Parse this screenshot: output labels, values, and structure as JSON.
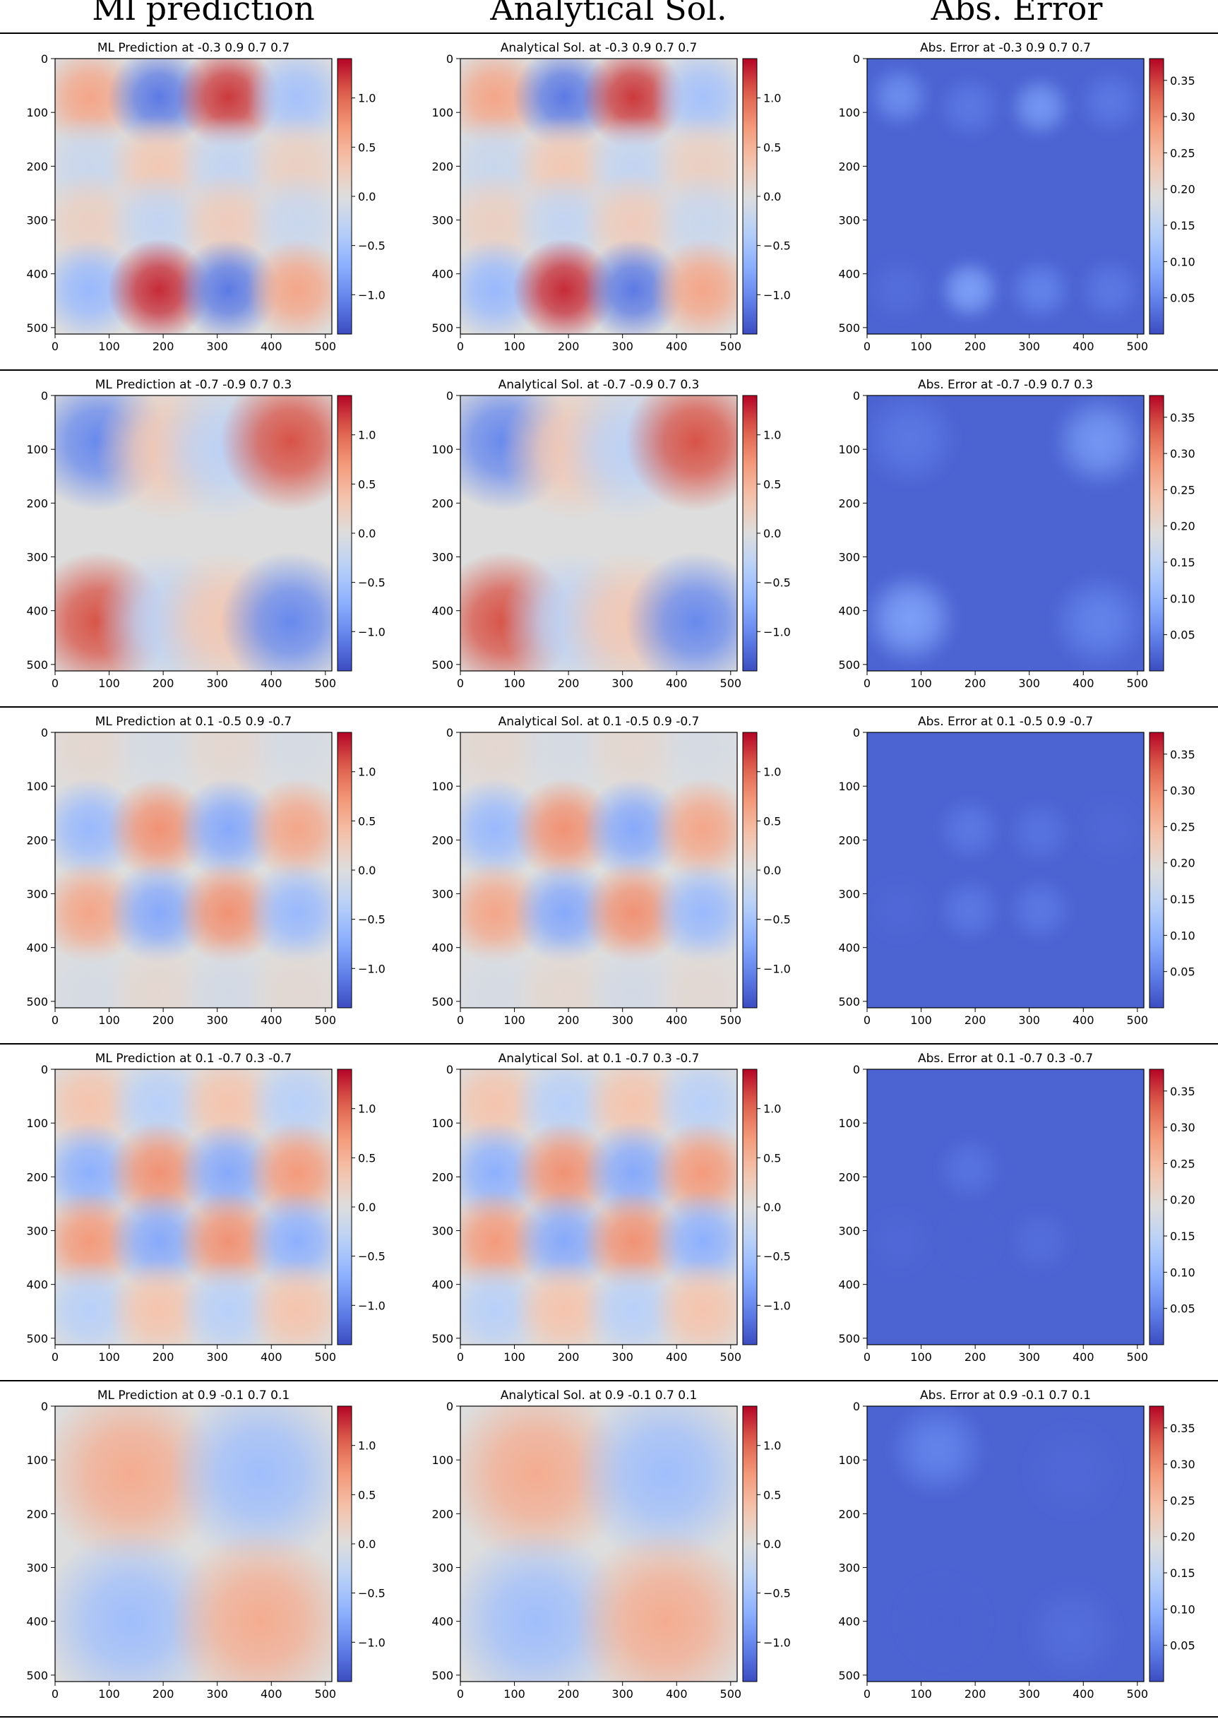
{
  "column_titles": [
    "Ml prediction",
    "Analytical Sol.",
    "Abs. Error"
  ],
  "colors": {
    "cmap_low": "#3b4cc0",
    "cmap_mid": "#dddddd",
    "cmap_high": "#b40426",
    "separator": "#000000"
  },
  "chart_data": [
    {
      "type": "heatmap",
      "row": 1,
      "params": "-0.3 0.9 0.7 0.7",
      "panels": [
        {
          "title": "ML Prediction at -0.3 0.9 0.7 0.7",
          "kind": "field",
          "colorbar_ticks": [
            "1.0",
            "0.5",
            "0.0",
            "−0.5",
            "−1.0"
          ],
          "vmin": -1.4,
          "vmax": 1.4
        },
        {
          "title": "Analytical Sol. at -0.3 0.9 0.7 0.7",
          "kind": "field",
          "colorbar_ticks": [
            "1.0",
            "0.5",
            "0.0",
            "−0.5",
            "−1.0"
          ],
          "vmin": -1.4,
          "vmax": 1.4
        },
        {
          "title": "Abs. Error at -0.3 0.9 0.7 0.7",
          "kind": "error",
          "colorbar_ticks": [
            "0.35",
            "0.30",
            "0.25",
            "0.20",
            "0.15",
            "0.10",
            "0.05"
          ],
          "vmin": 0.0,
          "vmax": 0.38
        }
      ],
      "blobs": [
        {
          "x": 64,
          "y": 72,
          "value": 0.6
        },
        {
          "x": 192,
          "y": 72,
          "value": -1.1
        },
        {
          "x": 320,
          "y": 72,
          "value": 1.2
        },
        {
          "x": 448,
          "y": 72,
          "value": -0.5
        },
        {
          "x": 64,
          "y": 200,
          "value": -0.2
        },
        {
          "x": 192,
          "y": 200,
          "value": 0.3
        },
        {
          "x": 320,
          "y": 200,
          "value": -0.25
        },
        {
          "x": 448,
          "y": 200,
          "value": 0.2
        },
        {
          "x": 64,
          "y": 305,
          "value": 0.2
        },
        {
          "x": 192,
          "y": 305,
          "value": -0.25
        },
        {
          "x": 320,
          "y": 305,
          "value": 0.25
        },
        {
          "x": 448,
          "y": 305,
          "value": -0.2
        },
        {
          "x": 64,
          "y": 430,
          "value": -0.6
        },
        {
          "x": 192,
          "y": 430,
          "value": 1.25
        },
        {
          "x": 320,
          "y": 430,
          "value": -1.1
        },
        {
          "x": 448,
          "y": 430,
          "value": 0.6
        }
      ],
      "error_blobs": [
        {
          "x": 60,
          "y": 70,
          "value": 0.06
        },
        {
          "x": 320,
          "y": 90,
          "value": 0.07
        },
        {
          "x": 190,
          "y": 90,
          "value": 0.04
        },
        {
          "x": 450,
          "y": 80,
          "value": 0.04
        },
        {
          "x": 190,
          "y": 430,
          "value": 0.08
        },
        {
          "x": 320,
          "y": 430,
          "value": 0.05
        },
        {
          "x": 450,
          "y": 430,
          "value": 0.04
        },
        {
          "x": 60,
          "y": 430,
          "value": 0.03
        }
      ]
    },
    {
      "type": "heatmap",
      "row": 2,
      "params": "-0.7 -0.9 0.7 0.3",
      "panels": [
        {
          "title": "ML Prediction at -0.7 -0.9 0.7 0.3",
          "kind": "field",
          "colorbar_ticks": [
            "1.0",
            "0.5",
            "0.0",
            "−0.5",
            "−1.0"
          ],
          "vmin": -1.4,
          "vmax": 1.4
        },
        {
          "title": "Analytical Sol. at -0.7 -0.9 0.7 0.3",
          "kind": "field",
          "colorbar_ticks": [
            "1.0",
            "0.5",
            "0.0",
            "−0.5",
            "−1.0"
          ],
          "vmin": -1.4,
          "vmax": 1.4
        },
        {
          "title": "Abs. Error at -0.7 -0.9 0.7 0.3",
          "kind": "error",
          "colorbar_ticks": [
            "0.35",
            "0.30",
            "0.25",
            "0.20",
            "0.15",
            "0.10",
            "0.05"
          ],
          "vmin": 0.0,
          "vmax": 0.38
        }
      ],
      "blobs": [
        {
          "x": 80,
          "y": 85,
          "value": -1.0
        },
        {
          "x": 205,
          "y": 100,
          "value": 0.3
        },
        {
          "x": 310,
          "y": 100,
          "value": -0.3
        },
        {
          "x": 435,
          "y": 85,
          "value": 1.1
        },
        {
          "x": 80,
          "y": 420,
          "value": 1.1
        },
        {
          "x": 205,
          "y": 420,
          "value": -0.3
        },
        {
          "x": 310,
          "y": 420,
          "value": 0.3
        },
        {
          "x": 435,
          "y": 420,
          "value": -1.0
        }
      ],
      "error_blobs": [
        {
          "x": 80,
          "y": 80,
          "value": 0.04
        },
        {
          "x": 430,
          "y": 85,
          "value": 0.07
        },
        {
          "x": 80,
          "y": 415,
          "value": 0.08
        },
        {
          "x": 430,
          "y": 420,
          "value": 0.05
        }
      ]
    },
    {
      "type": "heatmap",
      "row": 3,
      "params": "0.1 -0.5 0.9 -0.7",
      "panels": [
        {
          "title": "ML Prediction at 0.1 -0.5 0.9 -0.7",
          "kind": "field",
          "colorbar_ticks": [
            "1.0",
            "0.5",
            "0.0",
            "−0.5",
            "−1.0"
          ],
          "vmin": -1.4,
          "vmax": 1.4
        },
        {
          "title": "Analytical Sol. at 0.1 -0.5 0.9 -0.7",
          "kind": "field",
          "colorbar_ticks": [
            "1.0",
            "0.5",
            "0.0",
            "−0.5",
            "−1.0"
          ],
          "vmin": -1.4,
          "vmax": 1.4
        },
        {
          "title": "Abs. Error at 0.1 -0.5 0.9 -0.7",
          "kind": "error",
          "colorbar_ticks": [
            "0.35",
            "0.30",
            "0.25",
            "0.20",
            "0.15",
            "0.10",
            "0.05"
          ],
          "vmin": 0.0,
          "vmax": 0.38
        }
      ],
      "blobs": [
        {
          "x": 64,
          "y": 30,
          "value": 0.1
        },
        {
          "x": 192,
          "y": 30,
          "value": -0.08
        },
        {
          "x": 320,
          "y": 30,
          "value": 0.1
        },
        {
          "x": 448,
          "y": 30,
          "value": -0.08
        },
        {
          "x": 64,
          "y": 180,
          "value": -0.6
        },
        {
          "x": 192,
          "y": 180,
          "value": 0.75
        },
        {
          "x": 320,
          "y": 180,
          "value": -0.75
        },
        {
          "x": 448,
          "y": 180,
          "value": 0.6
        },
        {
          "x": 64,
          "y": 335,
          "value": 0.6
        },
        {
          "x": 192,
          "y": 335,
          "value": -0.75
        },
        {
          "x": 320,
          "y": 335,
          "value": 0.75
        },
        {
          "x": 448,
          "y": 335,
          "value": -0.6
        },
        {
          "x": 64,
          "y": 485,
          "value": -0.08
        },
        {
          "x": 192,
          "y": 485,
          "value": 0.1
        },
        {
          "x": 320,
          "y": 485,
          "value": -0.1
        },
        {
          "x": 448,
          "y": 485,
          "value": 0.08
        }
      ],
      "error_blobs": [
        {
          "x": 190,
          "y": 180,
          "value": 0.04
        },
        {
          "x": 320,
          "y": 185,
          "value": 0.035
        },
        {
          "x": 190,
          "y": 330,
          "value": 0.04
        },
        {
          "x": 320,
          "y": 330,
          "value": 0.04
        },
        {
          "x": 60,
          "y": 330,
          "value": 0.025
        },
        {
          "x": 450,
          "y": 180,
          "value": 0.025
        }
      ]
    },
    {
      "type": "heatmap",
      "row": 4,
      "params": "0.1 -0.7 0.3 -0.7",
      "panels": [
        {
          "title": "ML Prediction at 0.1 -0.7 0.3 -0.7",
          "kind": "field",
          "colorbar_ticks": [
            "1.0",
            "0.5",
            "0.0",
            "−0.5",
            "−1.0"
          ],
          "vmin": -1.4,
          "vmax": 1.4
        },
        {
          "title": "Analytical Sol. at 0.1 -0.7 0.3 -0.7",
          "kind": "field",
          "colorbar_ticks": [
            "1.0",
            "0.5",
            "0.0",
            "−0.5",
            "−1.0"
          ],
          "vmin": -1.4,
          "vmax": 1.4
        },
        {
          "title": "Abs. Error at 0.1 -0.7 0.3 -0.7",
          "kind": "error",
          "colorbar_ticks": [
            "0.35",
            "0.30",
            "0.25",
            "0.20",
            "0.15",
            "0.10",
            "0.05"
          ],
          "vmin": 0.0,
          "vmax": 0.38
        }
      ],
      "blobs": [
        {
          "x": 64,
          "y": 64,
          "value": 0.35
        },
        {
          "x": 192,
          "y": 64,
          "value": -0.35
        },
        {
          "x": 320,
          "y": 64,
          "value": 0.35
        },
        {
          "x": 448,
          "y": 64,
          "value": -0.35
        },
        {
          "x": 64,
          "y": 192,
          "value": -0.7
        },
        {
          "x": 192,
          "y": 192,
          "value": 0.75
        },
        {
          "x": 320,
          "y": 192,
          "value": -0.75
        },
        {
          "x": 448,
          "y": 192,
          "value": 0.7
        },
        {
          "x": 64,
          "y": 320,
          "value": 0.7
        },
        {
          "x": 192,
          "y": 320,
          "value": -0.75
        },
        {
          "x": 320,
          "y": 320,
          "value": 0.75
        },
        {
          "x": 448,
          "y": 320,
          "value": -0.7
        },
        {
          "x": 64,
          "y": 448,
          "value": -0.35
        },
        {
          "x": 192,
          "y": 448,
          "value": 0.35
        },
        {
          "x": 320,
          "y": 448,
          "value": -0.35
        },
        {
          "x": 448,
          "y": 448,
          "value": 0.35
        }
      ],
      "error_blobs": [
        {
          "x": 190,
          "y": 185,
          "value": 0.035
        },
        {
          "x": 60,
          "y": 320,
          "value": 0.025
        },
        {
          "x": 320,
          "y": 320,
          "value": 0.03
        },
        {
          "x": 190,
          "y": 320,
          "value": 0.02
        }
      ]
    },
    {
      "type": "heatmap",
      "row": 5,
      "params": "0.9 -0.1 0.7 0.1",
      "panels": [
        {
          "title": "ML Prediction at 0.9 -0.1 0.7 0.1",
          "kind": "field",
          "colorbar_ticks": [
            "1.0",
            "0.5",
            "0.0",
            "−0.5",
            "−1.0"
          ],
          "vmin": -1.4,
          "vmax": 1.4
        },
        {
          "title": "Analytical Sol. at 0.9 -0.1 0.7 0.1",
          "kind": "field",
          "colorbar_ticks": [
            "1.0",
            "0.5",
            "0.0",
            "−0.5",
            "−1.0"
          ],
          "vmin": -1.4,
          "vmax": 1.4
        },
        {
          "title": "Abs. Error at 0.9 -0.1 0.7 0.1",
          "kind": "error",
          "colorbar_ticks": [
            "0.35",
            "0.30",
            "0.25",
            "0.20",
            "0.15",
            "0.10",
            "0.05"
          ],
          "vmin": 0.0,
          "vmax": 0.38
        }
      ],
      "blobs": [
        {
          "x": 140,
          "y": 125,
          "value": 0.55
        },
        {
          "x": 380,
          "y": 125,
          "value": -0.55
        },
        {
          "x": 140,
          "y": 400,
          "value": -0.55
        },
        {
          "x": 380,
          "y": 400,
          "value": 0.55
        }
      ],
      "error_blobs": [
        {
          "x": 130,
          "y": 80,
          "value": 0.05
        },
        {
          "x": 380,
          "y": 120,
          "value": 0.025
        },
        {
          "x": 380,
          "y": 420,
          "value": 0.03
        },
        {
          "x": 140,
          "y": 400,
          "value": 0.02
        }
      ]
    }
  ],
  "axis_ticks": [
    "0",
    "100",
    "200",
    "300",
    "400",
    "500"
  ],
  "xlim": [
    0,
    512
  ],
  "ylim": [
    512,
    0
  ]
}
